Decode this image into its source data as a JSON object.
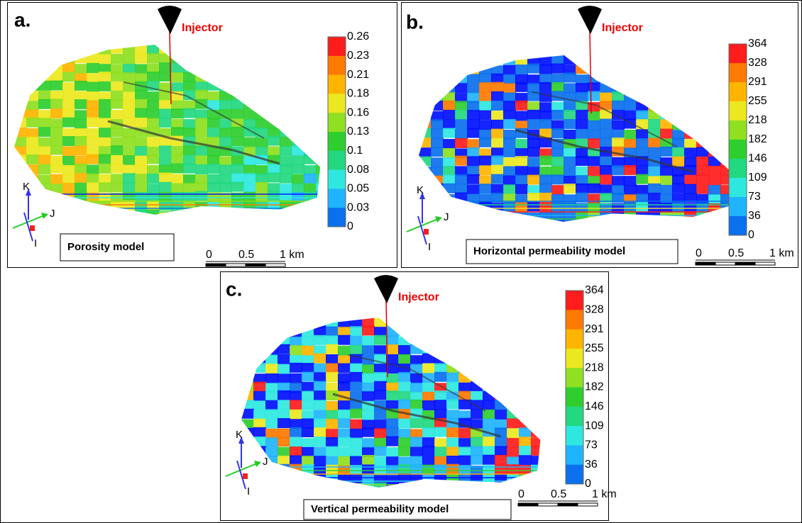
{
  "panels": [
    {
      "label": "a.",
      "injector": "Injector",
      "title": "Porosity model",
      "colorbar": [
        "0.26",
        "0.23",
        "0.21",
        "0.18",
        "0.16",
        "0.13",
        "0.1",
        "0.08",
        "0.05",
        "0.03",
        "0"
      ],
      "axes": {
        "k": "K",
        "j": "J",
        "i": "I"
      },
      "scale": [
        "0",
        "0.5",
        "1 km"
      ]
    },
    {
      "label": "b.",
      "injector": "Injector",
      "title": "Horizontal permeability model",
      "colorbar": [
        "364",
        "328",
        "291",
        "255",
        "218",
        "182",
        "146",
        "109",
        "73",
        "36",
        "0"
      ],
      "axes": {
        "k": "K",
        "j": "J",
        "i": "I"
      },
      "scale": [
        "0",
        "0.5",
        "1 km"
      ]
    },
    {
      "label": "c.",
      "injector": "Injector",
      "title": "Vertical permeability model",
      "colorbar": [
        "364",
        "328",
        "291",
        "255",
        "218",
        "182",
        "146",
        "109",
        "73",
        "36",
        "0"
      ],
      "axes": {
        "k": "K",
        "j": "J",
        "i": "I"
      },
      "scale": [
        "0",
        "0.5",
        "1 km"
      ]
    }
  ]
}
